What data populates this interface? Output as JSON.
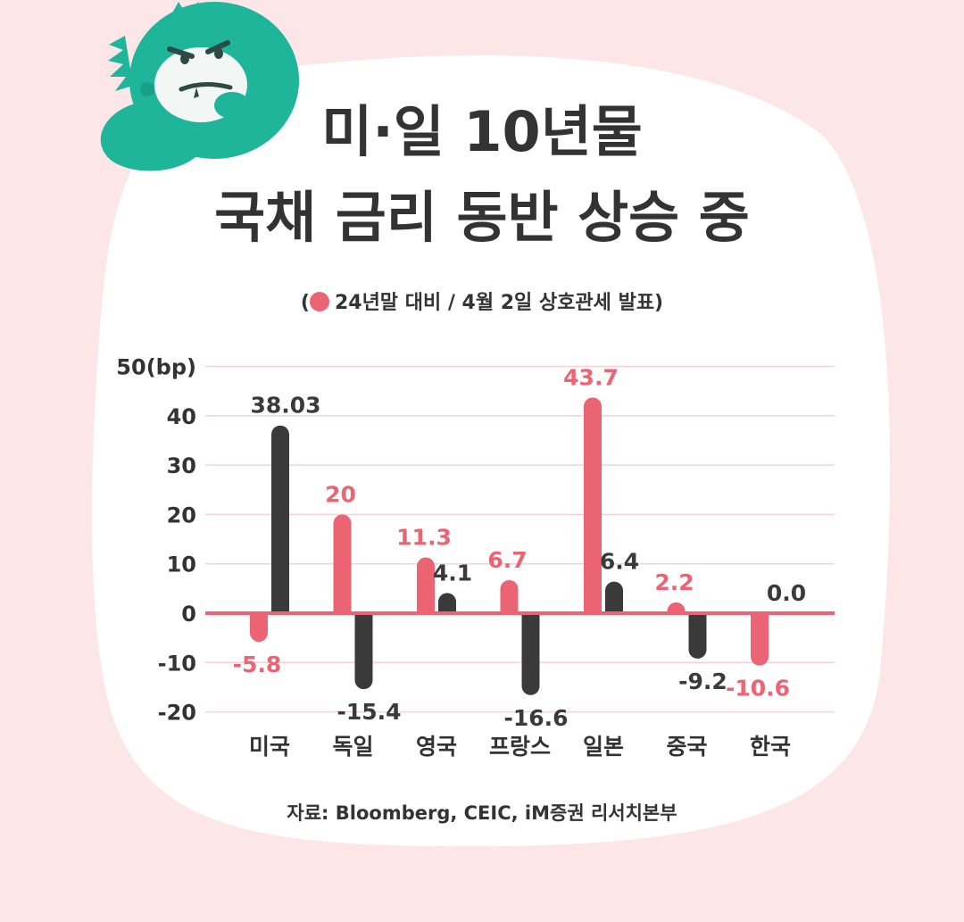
{
  "title": {
    "line1": "미·일 10년물",
    "line2": "국채 금리 동반 상승 중"
  },
  "subtitle": {
    "open": "(",
    "text": "24년말 대비 / 4월 2일 상호관세 발표)"
  },
  "source": "자료: Bloomberg, CEIC, iM증권 리서치본부",
  "colors": {
    "background": "#fde6e8",
    "card": "#ffffff",
    "red_series": "#eb6473",
    "dark_series": "#3a3a3a",
    "zero_line": "#eb6473",
    "grid": "#f6d2d6",
    "mascot": "#1fb59a"
  },
  "icons": {
    "mascot": "green-dinosaur-mascot-icon",
    "legend_marker": "red-circle-icon"
  },
  "chart_data": {
    "type": "bar",
    "categories": [
      "미국",
      "독일",
      "영국",
      "프랑스",
      "일본",
      "중국",
      "한국"
    ],
    "series": [
      {
        "color": "#eb6473",
        "values": [
          -5.8,
          20,
          11.3,
          6.7,
          43.7,
          2.2,
          -10.6
        ]
      },
      {
        "color": "#3a3a3a",
        "values": [
          38.03,
          -15.4,
          4.1,
          -16.6,
          6.4,
          -9.2,
          0.0
        ]
      }
    ],
    "value_labels": [
      [
        "-5.8",
        "20",
        "11.3",
        "6.7",
        "43.7",
        "2.2",
        "-10.6"
      ],
      [
        "38.03",
        "-15.4",
        "4.1",
        "-16.6",
        "6.4",
        "-9.2",
        "0.0"
      ]
    ],
    "yticks": [
      "-20",
      "-10",
      "0",
      "10",
      "20",
      "30",
      "40",
      "50(bp)"
    ],
    "ytick_values": [
      -20,
      -10,
      0,
      10,
      20,
      30,
      40,
      50
    ],
    "ylim": [
      -20,
      50
    ],
    "grid": true
  }
}
